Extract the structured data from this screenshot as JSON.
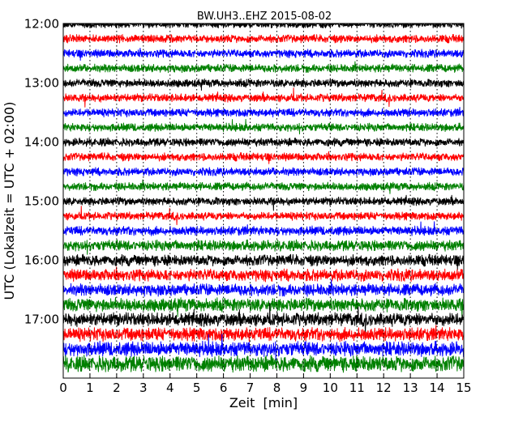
{
  "chart_data": {
    "type": "line",
    "title": "BW.UH3..EHZ 2015-08-02",
    "xlabel": "Zeit  [min]",
    "ylabel": "UTC (Lokalzeit = UTC + 02:00)",
    "xlim": [
      0,
      15
    ],
    "x_ticks": [
      "0",
      "1",
      "2",
      "3",
      "4",
      "5",
      "6",
      "7",
      "8",
      "9",
      "10",
      "11",
      "12",
      "13",
      "14",
      "15"
    ],
    "y_ticks": [
      "12:00",
      "13:00",
      "14:00",
      "15:00",
      "16:00",
      "17:00"
    ],
    "trace_interval_min": 15,
    "start_time": "12:00",
    "end_time": "18:00",
    "vertical_grid": "dotted",
    "series": [
      {
        "start": "12:00",
        "color": "#000000",
        "amplitude": 0.3
      },
      {
        "start": "12:15",
        "color": "#ff0000",
        "amplitude": 0.3
      },
      {
        "start": "12:30",
        "color": "#0000ff",
        "amplitude": 0.3
      },
      {
        "start": "12:45",
        "color": "#008000",
        "amplitude": 0.3
      },
      {
        "start": "13:00",
        "color": "#000000",
        "amplitude": 0.3
      },
      {
        "start": "13:15",
        "color": "#ff0000",
        "amplitude": 0.3
      },
      {
        "start": "13:30",
        "color": "#0000ff",
        "amplitude": 0.3
      },
      {
        "start": "13:45",
        "color": "#008000",
        "amplitude": 0.3
      },
      {
        "start": "14:00",
        "color": "#000000",
        "amplitude": 0.3
      },
      {
        "start": "14:15",
        "color": "#ff0000",
        "amplitude": 0.3
      },
      {
        "start": "14:30",
        "color": "#0000ff",
        "amplitude": 0.3
      },
      {
        "start": "14:45",
        "color": "#008000",
        "amplitude": 0.3
      },
      {
        "start": "15:00",
        "color": "#000000",
        "amplitude": 0.3
      },
      {
        "start": "15:15",
        "color": "#ff0000",
        "amplitude": 0.3
      },
      {
        "start": "15:30",
        "color": "#0000ff",
        "amplitude": 0.34
      },
      {
        "start": "15:45",
        "color": "#008000",
        "amplitude": 0.4
      },
      {
        "start": "16:00",
        "color": "#000000",
        "amplitude": 0.42
      },
      {
        "start": "16:15",
        "color": "#ff0000",
        "amplitude": 0.45
      },
      {
        "start": "16:30",
        "color": "#0000ff",
        "amplitude": 0.45
      },
      {
        "start": "16:45",
        "color": "#008000",
        "amplitude": 0.5
      },
      {
        "start": "17:00",
        "color": "#000000",
        "amplitude": 0.5
      },
      {
        "start": "17:15",
        "color": "#ff0000",
        "amplitude": 0.5
      },
      {
        "start": "17:30",
        "color": "#0000ff",
        "amplitude": 0.55
      },
      {
        "start": "17:45",
        "color": "#008000",
        "amplitude": 0.6
      }
    ]
  }
}
